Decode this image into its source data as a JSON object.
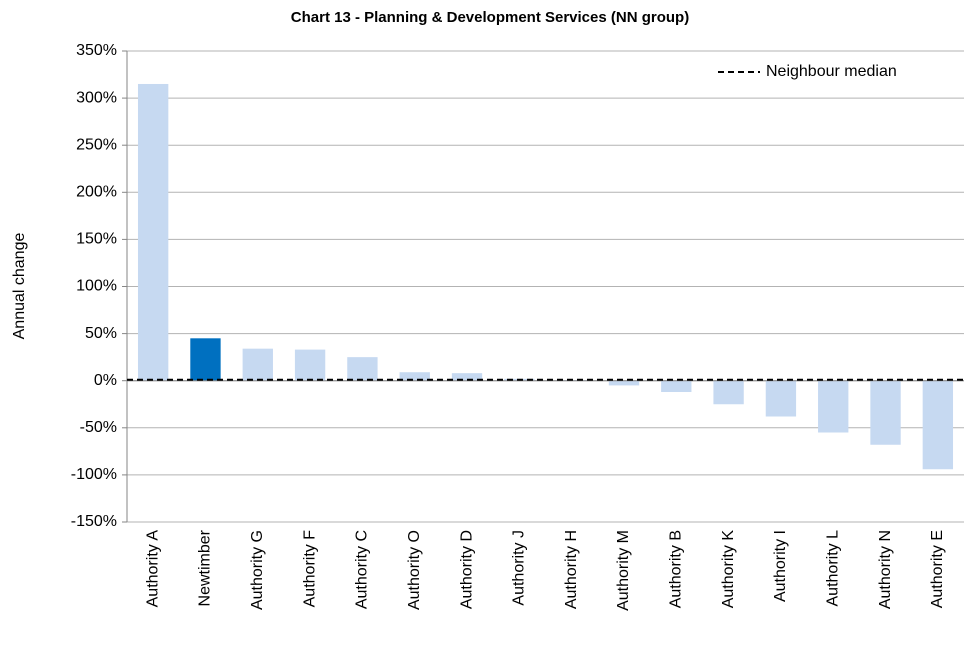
{
  "chart_data": {
    "type": "bar",
    "title": "Chart 13 - Planning & Development Services (NN group)",
    "y_label": "Annual change",
    "categories": [
      "Authority A",
      "Newtimber",
      "Authority G",
      "Authority F",
      "Authority C",
      "Authority O",
      "Authority D",
      "Authority J",
      "Authority H",
      "Authority M",
      "Authority B",
      "Authority K",
      "Authority I",
      "Authority L",
      "Authority N",
      "Authority E"
    ],
    "values": [
      315,
      45,
      34,
      33,
      25,
      9,
      8,
      2,
      0.5,
      -5,
      -12,
      -25,
      -38,
      -55,
      -68,
      -94
    ],
    "colors": [
      "#c6d9f1",
      "#0070c0",
      "#c6d9f1",
      "#c6d9f1",
      "#c6d9f1",
      "#c6d9f1",
      "#c6d9f1",
      "#c6d9f1",
      "#c6d9f1",
      "#c6d9f1",
      "#c6d9f1",
      "#c6d9f1",
      "#c6d9f1",
      "#c6d9f1",
      "#c6d9f1",
      "#c6d9f1"
    ],
    "median": {
      "name": "Neighbour median",
      "value": 1,
      "color": "#000000"
    },
    "legend": "top-right",
    "ylim": [
      -150,
      350
    ],
    "yticks": [
      {
        "value": -150,
        "label": "-150%"
      },
      {
        "value": -100,
        "label": "-100%"
      },
      {
        "value": -50,
        "label": "-50%"
      },
      {
        "value": 0,
        "label": "0%"
      },
      {
        "value": 50,
        "label": "50%"
      },
      {
        "value": 100,
        "label": "100%"
      },
      {
        "value": 150,
        "label": "150%"
      },
      {
        "value": 200,
        "label": "200%"
      },
      {
        "value": 250,
        "label": "250%"
      },
      {
        "value": 300,
        "label": "300%"
      },
      {
        "value": 350,
        "label": "350%"
      }
    ],
    "grid": true
  }
}
